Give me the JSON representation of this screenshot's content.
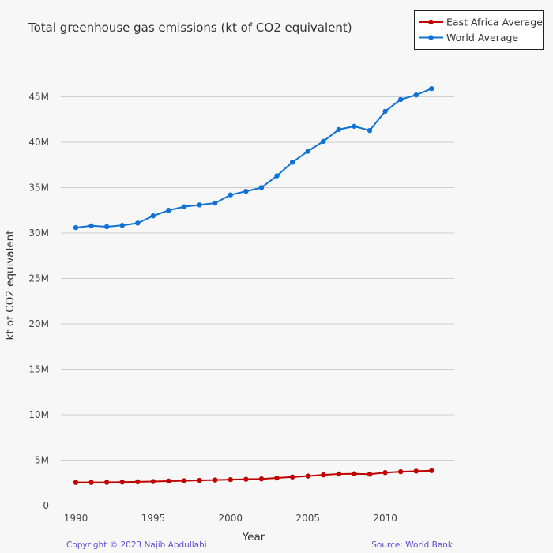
{
  "chart_data": {
    "type": "line",
    "title": "Total greenhouse gas emissions (kt of CO2 equivalent)",
    "xlabel": "Year",
    "ylabel": "kt of CO2 equivalent",
    "x": [
      1990,
      1991,
      1992,
      1993,
      1994,
      1995,
      1996,
      1997,
      1998,
      1999,
      2000,
      2001,
      2002,
      2003,
      2004,
      2005,
      2006,
      2007,
      2008,
      2009,
      2010,
      2011,
      2012,
      2013
    ],
    "x_ticks": [
      1990,
      1995,
      2000,
      2005,
      2010
    ],
    "x_tick_labels": [
      "1990",
      "1995",
      "2000",
      "2005",
      "2010"
    ],
    "xlim": [
      1989,
      2014.5
    ],
    "ylim": [
      0,
      47000000
    ],
    "y_ticks": [
      0,
      5000000,
      10000000,
      15000000,
      20000000,
      25000000,
      30000000,
      35000000,
      40000000,
      45000000
    ],
    "y_tick_labels": [
      "0",
      "5M",
      "10M",
      "15M",
      "20M",
      "25M",
      "30M",
      "35M",
      "40M",
      "45M"
    ],
    "grid": "horizontal",
    "legend_position": "top-right",
    "series": [
      {
        "name": "East Africa Average",
        "color": "#c00000",
        "values": [
          2550000,
          2550000,
          2560000,
          2590000,
          2620000,
          2650000,
          2700000,
          2730000,
          2780000,
          2820000,
          2860000,
          2900000,
          2940000,
          3040000,
          3150000,
          3250000,
          3380000,
          3480000,
          3500000,
          3460000,
          3630000,
          3730000,
          3790000,
          3850000
        ]
      },
      {
        "name": "World Average",
        "color": "#0f72d4",
        "values": [
          30600000,
          30800000,
          30700000,
          30850000,
          31100000,
          31900000,
          32500000,
          32900000,
          33100000,
          33300000,
          34200000,
          34600000,
          35000000,
          36300000,
          37800000,
          39000000,
          40100000,
          41400000,
          41750000,
          41300000,
          43400000,
          44700000,
          45200000,
          45900000
        ]
      }
    ]
  },
  "footer": {
    "copyright": "Copyright © 2023 Najib Abdullahi",
    "source": "Source: World Bank"
  }
}
